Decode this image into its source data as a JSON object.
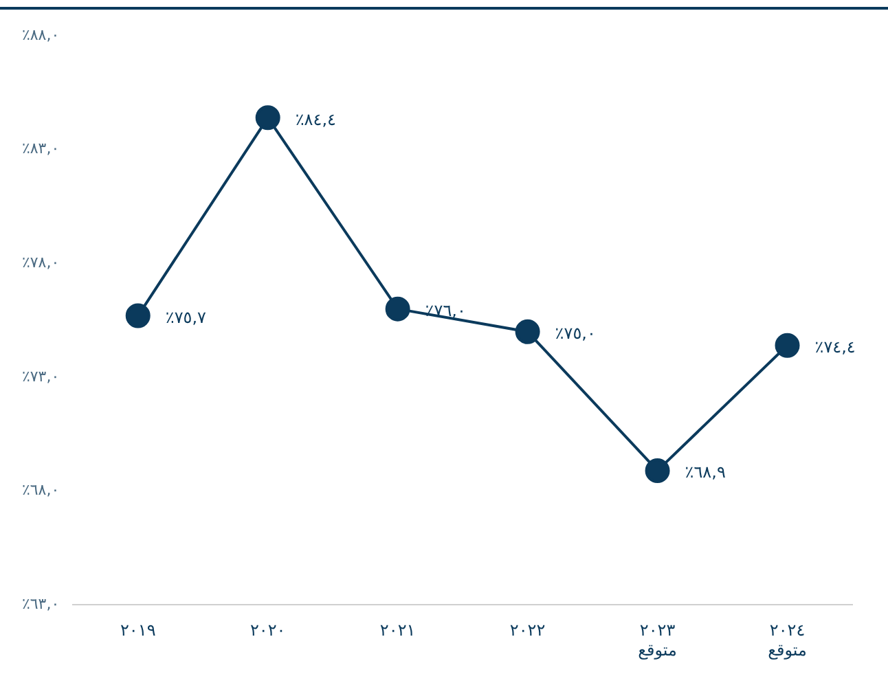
{
  "chart_data": {
    "type": "line",
    "categories": [
      "٢٠١٩",
      "٢٠٢٠",
      "٢٠٢١",
      "٢٠٢٢",
      "٢٠٢٣\nمتوقع",
      "٢٠٢٤\nمتوقع"
    ],
    "series": [
      {
        "color": "#0b3a5c",
        "values": [
          75.7,
          84.4,
          76.0,
          75.0,
          68.9,
          74.4
        ],
        "value_labels": [
          "٪٧٥,٧",
          "٪٨٤,٤",
          "٪٧٦,٠",
          "٪٧٥,٠",
          "٪٦٨,٩",
          "٪٧٤,٤"
        ]
      }
    ],
    "ylim": [
      63,
      88
    ],
    "yticks": [
      {
        "value": 63,
        "label": "٪٦٣,٠"
      },
      {
        "value": 68,
        "label": "٪٦٨,٠"
      },
      {
        "value": 73,
        "label": "٪٧٣,٠"
      },
      {
        "value": 78,
        "label": "٪٧٨,٠"
      },
      {
        "value": 83,
        "label": "٪٨٣,٠"
      },
      {
        "value": 88,
        "label": "٪٨٨,٠"
      }
    ],
    "grid": false,
    "legend": false,
    "marker": "circle",
    "line_style": "solid"
  }
}
